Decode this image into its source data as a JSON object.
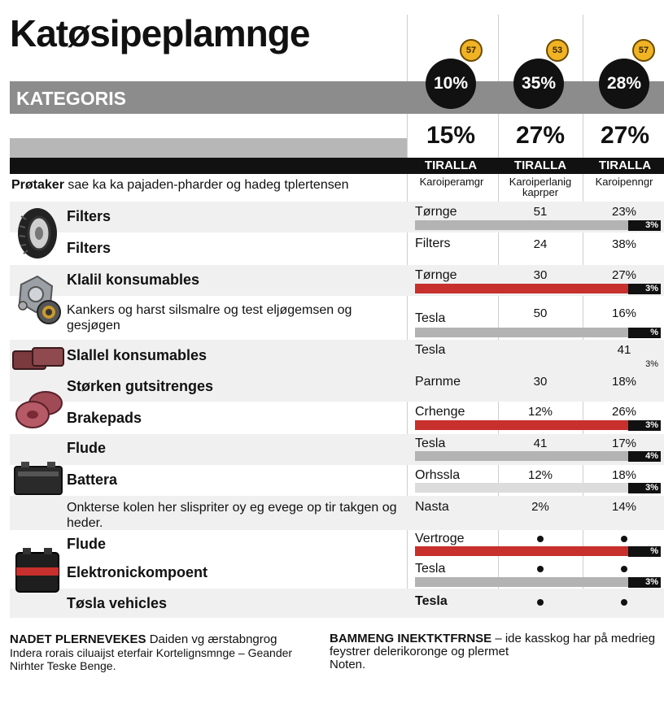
{
  "title": "Katøsipeplamnge",
  "category_label": "KATEGORIS",
  "columns": [
    {
      "badge": "57",
      "circle": "10%",
      "big": "15%",
      "tiralla": "TIRALLA",
      "sub": "Karoiperamgr",
      "sub2": ""
    },
    {
      "badge": "53",
      "circle": "35%",
      "big": "27%",
      "tiralla": "TIRALLA",
      "sub": "Karoiperlanig",
      "sub2": "kaprper"
    },
    {
      "badge": "57",
      "circle": "28%",
      "big": "27%",
      "tiralla": "TIRALLA",
      "sub": "Karoipenngr",
      "sub2": ""
    }
  ],
  "header_desc_bold": "Prøtaker",
  "header_desc_rest": " sae ka ka pajaden-pharder og hadeg tplertensen",
  "rows": [
    {
      "label": "Filters",
      "name": "Tørnge",
      "v1": "51",
      "v2": "23%",
      "tag": "3%"
    },
    {
      "label": "Filters",
      "name": "Filters",
      "v1": "24",
      "v2": "38%",
      "tag": ""
    },
    {
      "label": "Klalil konsumables",
      "name": "Tørnge",
      "v1": "30",
      "v2": "27%",
      "tag": "3%"
    },
    {
      "label": "Kankers og harst silsmalre og test eljøgemsen og gesjøgen",
      "name": "Tesla",
      "v1": "50",
      "v2": "16%",
      "tag": "%"
    },
    {
      "label": "Slallel konsumables",
      "name": "Tesla",
      "v1": "",
      "v2": "41",
      "tag": "3%"
    },
    {
      "label": "Størken gutsitrenges",
      "name": "Parnme",
      "v1": "30",
      "v2": "18%",
      "tag": ""
    },
    {
      "label": "Brakepads",
      "name": "Crhenge",
      "v1": "12%",
      "v2": "26%",
      "tag": "3%"
    },
    {
      "label": "Flude",
      "name": "Tesla",
      "v1": "41",
      "v2": "17%",
      "tag": "4%"
    },
    {
      "label": "Battera",
      "name": "Orhssla",
      "v1": "12%",
      "v2": "18%",
      "tag": "3%"
    },
    {
      "label": "Onkterse kolen her slispriter oy eg evege op tir takgen og heder.",
      "name": "Nasta",
      "v1": "2%",
      "v2": "14%",
      "tag": ""
    },
    {
      "label": "Flude",
      "name": "Vertroge",
      "v1": "",
      "v2": "",
      "tag": "%"
    },
    {
      "label": "Elektronickompoent",
      "name": "Tesla",
      "v1": "",
      "v2": "",
      "tag": "3%"
    },
    {
      "label": "Tøsla vehicles",
      "name": "Tesla",
      "v1": "",
      "v2": "",
      "tag": ""
    }
  ],
  "footer_left": {
    "heading": "NADET PLERNEVEKES",
    "heading_rest": " Daiden vg ærstabngrog",
    "line2": "Indera rorais ciluaijst eterfair Kortelignsmnge – Geander",
    "line3": "Nirhter Teske Benge."
  },
  "footer_right": {
    "heading": "BAMMENG INEKTKTFRNSE",
    "heading_rest": " – ide kasskog har på medrieg",
    "line2": "feystrer  delerikoronge og plermet",
    "line3": "Noten."
  }
}
